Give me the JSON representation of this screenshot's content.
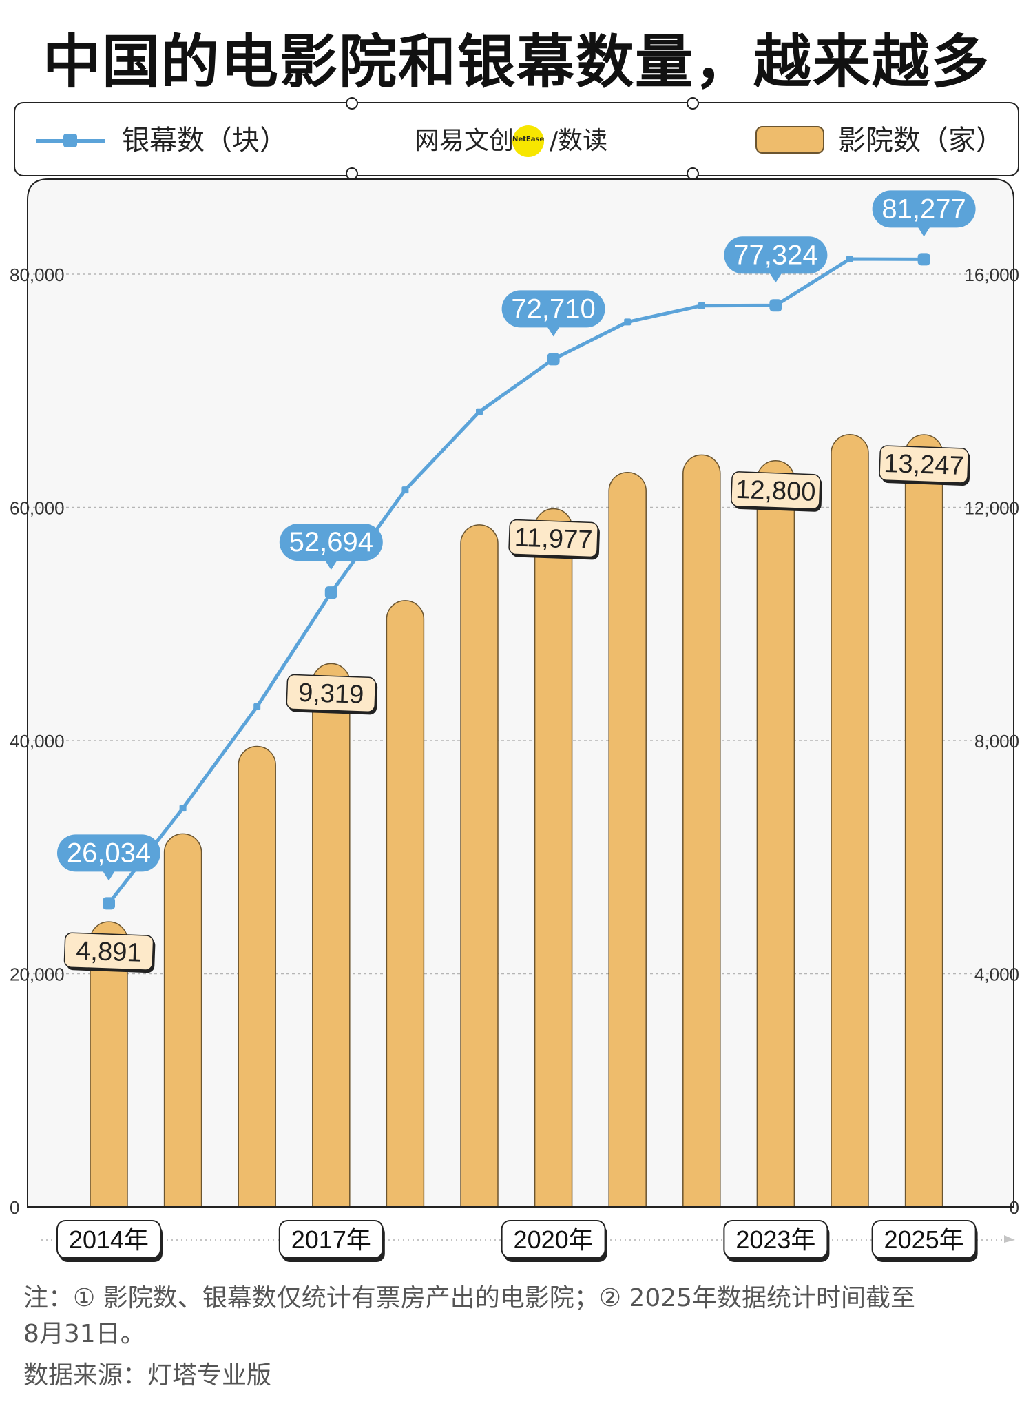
{
  "title": "中国的电影院和银幕数量，越来越多",
  "legend": {
    "screens_label": "银幕数（块）",
    "cinemas_label": "影院数（家）",
    "brand_name": "网易文创",
    "brand_badge": "NetEase",
    "brand_sub": "/数读"
  },
  "colors": {
    "line": "#5ba3d9",
    "bar": "#eebc6c",
    "bar_border": "#6b5530",
    "label_fill": "#fde9c9"
  },
  "chart_data": {
    "type": "bar",
    "categories": [
      "2014",
      "2015",
      "2016",
      "2017",
      "2018",
      "2019",
      "2020",
      "2021",
      "2022",
      "2023",
      "2024",
      "2025"
    ],
    "x_tick_labels": [
      {
        "index": 0,
        "label": "2014年"
      },
      {
        "index": 3,
        "label": "2017年"
      },
      {
        "index": 6,
        "label": "2020年"
      },
      {
        "index": 9,
        "label": "2023年"
      },
      {
        "index": 11,
        "label": "2025年"
      }
    ],
    "series": [
      {
        "name": "银幕数（块）",
        "type": "line",
        "axis": "left",
        "values": [
          26034,
          34200,
          42900,
          52694,
          61500,
          68200,
          72710,
          75900,
          77300,
          77324,
          81300,
          81277
        ],
        "labeled_indices": [
          0,
          3,
          6,
          9,
          11
        ],
        "labels": [
          "26,034",
          "52,694",
          "72,710",
          "77,324",
          "81,277"
        ]
      },
      {
        "name": "影院数（家）",
        "type": "bar",
        "axis": "right",
        "values": [
          4891,
          6400,
          7900,
          9319,
          10400,
          11700,
          11977,
          12600,
          12900,
          12800,
          13250,
          13247
        ],
        "labeled_indices": [
          0,
          3,
          6,
          9,
          11
        ],
        "labels": [
          "4,891",
          "9,319",
          "11,977",
          "12,800",
          "13,247"
        ]
      }
    ],
    "y_left": {
      "ylim": [
        0,
        80000
      ],
      "ticks": [
        "0",
        "20,000",
        "40,000",
        "60,000",
        "80,000"
      ]
    },
    "y_right": {
      "ylim": [
        0,
        16000
      ],
      "ticks": [
        "0",
        "4,000",
        "8,000",
        "12,000",
        "16,000"
      ]
    },
    "grid": true
  },
  "footnotes": {
    "line1": "注：① 影院数、银幕数仅统计有票房产出的电影院；② 2025年数据统计时间截至",
    "line2": "8月31日。",
    "source": "数据来源：灯塔专业版"
  }
}
